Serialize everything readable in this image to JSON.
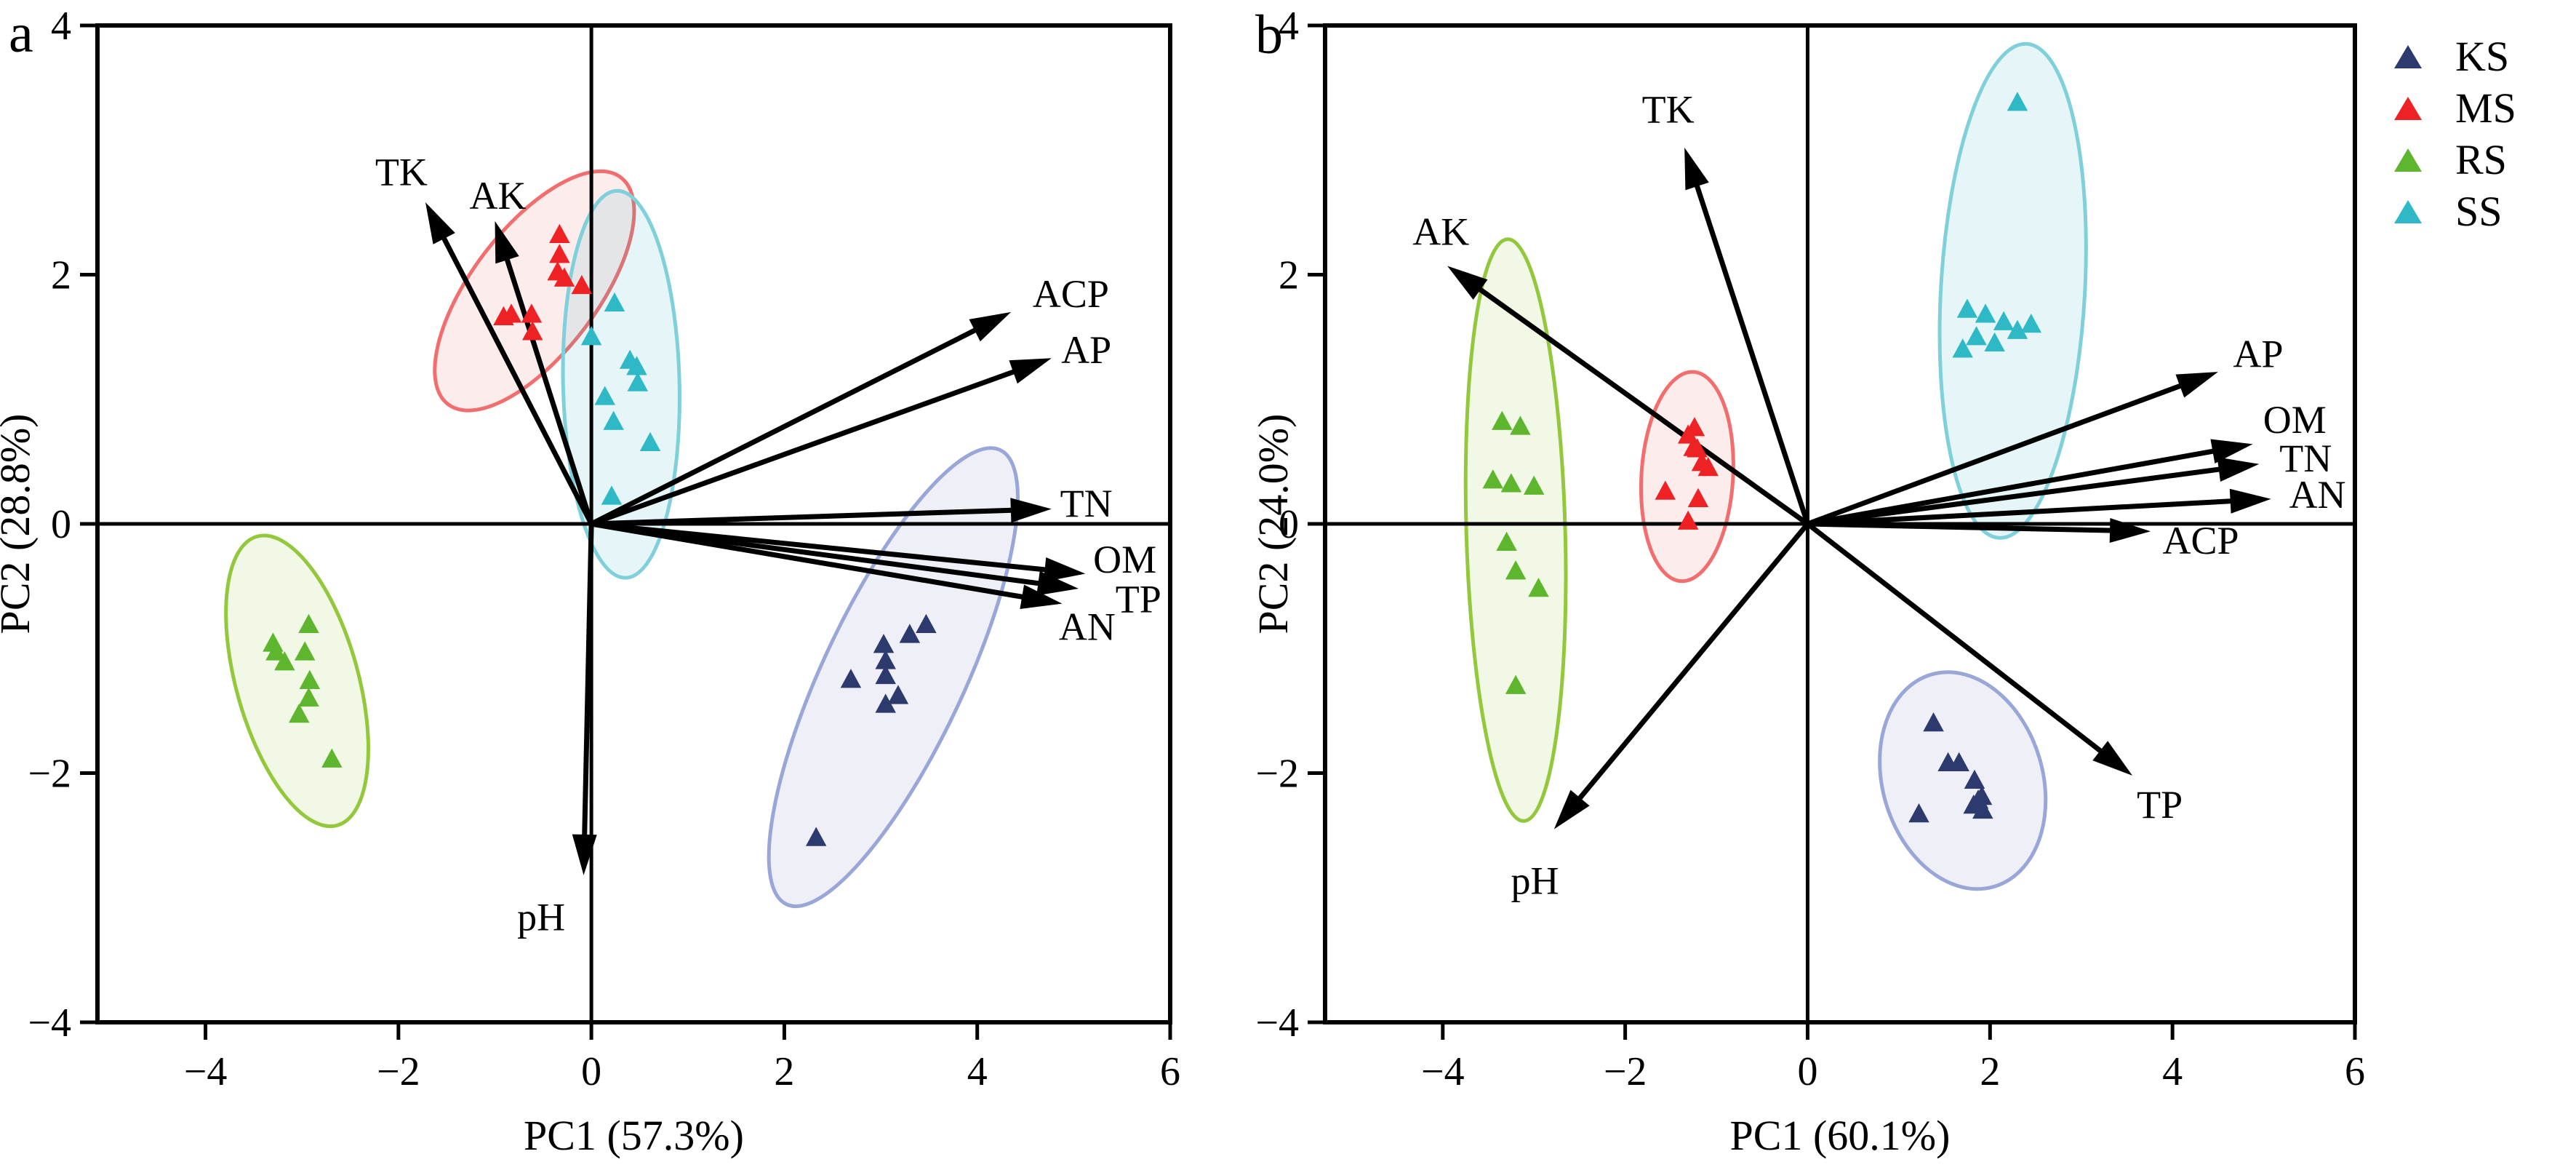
{
  "figure": {
    "panel_a_label": "a",
    "panel_b_label": "b"
  },
  "legend": {
    "items": [
      {
        "label": "KS",
        "color": "#2c3a6e"
      },
      {
        "label": "MS",
        "color": "#ee2224"
      },
      {
        "label": "RS",
        "color": "#5eb52e"
      },
      {
        "label": "SS",
        "color": "#2fb8c5"
      }
    ]
  },
  "chart_data": [
    {
      "type": "scatter",
      "panel_letter": "a",
      "xlabel": "PC1 (57.3%)",
      "ylabel": "PC2 (28.8%)",
      "xlim": [
        -5.12,
        6.0
      ],
      "ylim": [
        -4,
        4
      ],
      "xtick_vals": [
        -4,
        -2,
        0,
        2,
        4,
        6
      ],
      "xtick_labels": [
        "−4",
        "−2",
        "0",
        "2",
        "4",
        "6"
      ],
      "ytick_vals": [
        4,
        2,
        0,
        -2,
        -4
      ],
      "ytick_labels": [
        "4",
        "2",
        "0",
        "−2",
        "−4"
      ],
      "grid": false,
      "series": [
        {
          "name": "KS",
          "color": "#2c3a6e",
          "points": [
            [
              3.47,
              -0.81
            ],
            [
              3.3,
              -0.89
            ],
            [
              3.03,
              -0.97
            ],
            [
              3.05,
              -1.1
            ],
            [
              3.05,
              -1.22
            ],
            [
              2.69,
              -1.25
            ],
            [
              3.18,
              -1.38
            ],
            [
              3.05,
              -1.45
            ],
            [
              2.33,
              -2.52
            ]
          ]
        },
        {
          "name": "MS",
          "color": "#ee2224",
          "points": [
            [
              -0.33,
              2.32
            ],
            [
              -0.33,
              2.16
            ],
            [
              -0.35,
              2.02
            ],
            [
              -0.28,
              1.97
            ],
            [
              -0.1,
              1.91
            ],
            [
              -0.91,
              1.66
            ],
            [
              -0.83,
              1.68
            ],
            [
              -0.62,
              1.68
            ],
            [
              -0.61,
              1.54
            ]
          ]
        },
        {
          "name": "RS",
          "color": "#5eb52e",
          "points": [
            [
              -3.3,
              -0.96
            ],
            [
              -3.27,
              -1.03
            ],
            [
              -3.18,
              -1.11
            ],
            [
              -2.93,
              -0.81
            ],
            [
              -2.97,
              -1.03
            ],
            [
              -2.92,
              -1.26
            ],
            [
              -2.93,
              -1.4
            ],
            [
              -3.03,
              -1.53
            ],
            [
              -2.69,
              -1.89
            ]
          ]
        },
        {
          "name": "SS",
          "color": "#2fb8c5",
          "points": [
            [
              0.24,
              1.77
            ],
            [
              0.0,
              1.5
            ],
            [
              0.4,
              1.31
            ],
            [
              0.47,
              1.26
            ],
            [
              0.48,
              1.13
            ],
            [
              0.14,
              1.02
            ],
            [
              0.23,
              0.82
            ],
            [
              0.61,
              0.65
            ],
            [
              0.21,
              0.22
            ]
          ]
        }
      ],
      "ellipses": [
        {
          "group": "MS",
          "cx": -0.59,
          "cy": 1.87,
          "rmaj": 196,
          "rmin": 86,
          "angle": -52.7,
          "stroke": "#f26d6d",
          "fill": "rgba(242,109,109,0.13)"
        },
        {
          "group": "SS",
          "cx": 0.31,
          "cy": 1.12,
          "rmaj": 266,
          "rmin": 80,
          "angle": 88.7,
          "stroke": "#7fd0da",
          "fill": "rgba(47,184,197,0.12)"
        },
        {
          "group": "RS",
          "cx": -3.05,
          "cy": -1.26,
          "rmaj": 206,
          "rmin": 84,
          "angle": 74.5,
          "stroke": "#93c83d",
          "fill": "rgba(147,200,61,0.13)"
        },
        {
          "group": "KS",
          "cx": 3.13,
          "cy": -1.23,
          "rmaj": 345,
          "rmin": 97,
          "angle": 115.2,
          "stroke": "#99a6d8",
          "fill": "rgba(120,135,190,0.13)"
        }
      ],
      "arrows": [
        {
          "label": "TK",
          "x": -1.72,
          "y": 2.58,
          "lx": -1.97,
          "ly": 2.83
        },
        {
          "label": "AK",
          "x": -1.0,
          "y": 2.43,
          "lx": -0.97,
          "ly": 2.64
        },
        {
          "label": "ACP",
          "x": 4.35,
          "y": 1.7,
          "lx": 4.97,
          "ly": 1.85
        },
        {
          "label": "AP",
          "x": 4.77,
          "y": 1.33,
          "lx": 5.13,
          "ly": 1.4
        },
        {
          "label": "TN",
          "x": 4.77,
          "y": 0.12,
          "lx": 5.13,
          "ly": 0.17
        },
        {
          "label": "OM",
          "x": 5.12,
          "y": -0.4,
          "lx": 5.53,
          "ly": -0.28
        },
        {
          "label": "TP",
          "x": 5.05,
          "y": -0.52,
          "lx": 5.67,
          "ly": -0.6
        },
        {
          "label": "AN",
          "x": 4.88,
          "y": -0.64,
          "lx": 5.14,
          "ly": -0.82
        },
        {
          "label": "pH",
          "x": -0.08,
          "y": -2.82,
          "lx": -0.52,
          "ly": -3.15
        }
      ]
    },
    {
      "type": "scatter",
      "panel_letter": "b",
      "xlabel": "PC1 (60.1%)",
      "ylabel": "PC2 (24.0%)",
      "xlim": [
        -5.29,
        6.0
      ],
      "ylim": [
        -4,
        4
      ],
      "xtick_vals": [
        -4,
        -2,
        0,
        2,
        4,
        6
      ],
      "xtick_labels": [
        "−4",
        "−2",
        "0",
        "2",
        "4",
        "6"
      ],
      "ytick_vals": [
        4,
        2,
        0,
        -2,
        -4
      ],
      "ytick_labels": [
        "4",
        "2",
        "0",
        "−2",
        "−4"
      ],
      "grid": false,
      "series": [
        {
          "name": "KS",
          "color": "#2c3a6e",
          "points": [
            [
              1.38,
              -1.6
            ],
            [
              1.54,
              -1.92
            ],
            [
              1.66,
              -1.92
            ],
            [
              1.83,
              -2.06
            ],
            [
              1.91,
              -2.19
            ],
            [
              1.82,
              -2.26
            ],
            [
              1.92,
              -2.3
            ],
            [
              1.87,
              -2.22
            ],
            [
              1.22,
              -2.33
            ]
          ]
        },
        {
          "name": "MS",
          "color": "#ee2224",
          "points": [
            [
              -1.24,
              0.77
            ],
            [
              -1.31,
              0.71
            ],
            [
              -1.25,
              0.61
            ],
            [
              -1.21,
              0.6
            ],
            [
              -1.16,
              0.49
            ],
            [
              -1.09,
              0.45
            ],
            [
              -1.56,
              0.26
            ],
            [
              -1.2,
              0.2
            ],
            [
              -1.31,
              0.02
            ]
          ]
        },
        {
          "name": "RS",
          "color": "#5eb52e",
          "points": [
            [
              -3.35,
              0.82
            ],
            [
              -3.15,
              0.78
            ],
            [
              -3.45,
              0.35
            ],
            [
              -3.25,
              0.32
            ],
            [
              -3.0,
              0.3
            ],
            [
              -3.3,
              -0.15
            ],
            [
              -3.2,
              -0.38
            ],
            [
              -2.95,
              -0.52
            ],
            [
              -3.2,
              -1.3
            ]
          ]
        },
        {
          "name": "SS",
          "color": "#2fb8c5",
          "points": [
            [
              2.3,
              3.38
            ],
            [
              1.75,
              1.72
            ],
            [
              1.95,
              1.68
            ],
            [
              2.15,
              1.62
            ],
            [
              1.85,
              1.5
            ],
            [
              2.05,
              1.45
            ],
            [
              2.3,
              1.55
            ],
            [
              2.45,
              1.6
            ],
            [
              1.7,
              1.4
            ]
          ]
        }
      ],
      "ellipses": [
        {
          "group": "RS",
          "cx": -3.2,
          "cy": -0.05,
          "rmaj": 400,
          "rmin": 68,
          "angle": 88.4,
          "stroke": "#93c83d",
          "fill": "rgba(147,200,61,0.13)"
        },
        {
          "group": "MS",
          "cx": -1.32,
          "cy": 0.38,
          "rmaj": 144,
          "rmin": 63,
          "angle": 93.4,
          "stroke": "#f26d6d",
          "fill": "rgba(242,109,109,0.13)"
        },
        {
          "group": "SS",
          "cx": 2.25,
          "cy": 1.87,
          "rmaj": 340,
          "rmin": 99,
          "angle": 93.2,
          "stroke": "#7fd0da",
          "fill": "rgba(47,184,197,0.12)"
        },
        {
          "group": "KS",
          "cx": 1.7,
          "cy": -2.06,
          "rmaj": 152,
          "rmin": 110,
          "angle": 73.3,
          "stroke": "#99a6d8",
          "fill": "rgba(120,135,190,0.13)"
        }
      ],
      "arrows": [
        {
          "label": "TK",
          "x": -1.35,
          "y": 3.02,
          "lx": -1.53,
          "ly": 3.33
        },
        {
          "label": "AK",
          "x": -3.95,
          "y": 2.07,
          "lx": -4.02,
          "ly": 2.35
        },
        {
          "label": "AP",
          "x": 4.5,
          "y": 1.22,
          "lx": 4.94,
          "ly": 1.37
        },
        {
          "label": "OM",
          "x": 4.88,
          "y": 0.64,
          "lx": 5.34,
          "ly": 0.84
        },
        {
          "label": "TN",
          "x": 4.95,
          "y": 0.48,
          "lx": 5.46,
          "ly": 0.53
        },
        {
          "label": "AN",
          "x": 5.08,
          "y": 0.2,
          "lx": 5.59,
          "ly": 0.24
        },
        {
          "label": "ACP",
          "x": 3.76,
          "y": -0.06,
          "lx": 4.31,
          "ly": -0.13
        },
        {
          "label": "TP",
          "x": 3.56,
          "y": -2.02,
          "lx": 3.86,
          "ly": -2.25
        },
        {
          "label": "pH",
          "x": -2.78,
          "y": -2.45,
          "lx": -2.99,
          "ly": -2.86
        }
      ]
    }
  ]
}
